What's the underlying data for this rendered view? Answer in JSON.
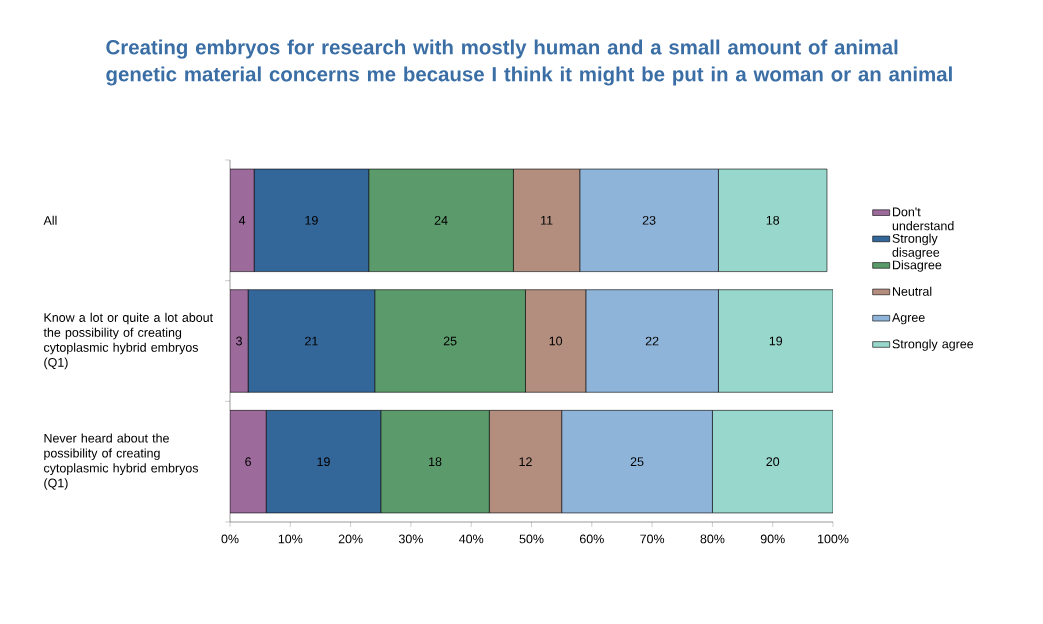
{
  "chart_data": {
    "type": "bar",
    "orientation": "horizontal",
    "stacked": true,
    "title": "Creating embryos for research with mostly human and a small amount of animal genetic material concerns me because I think it might be put in a woman or an animal",
    "categories": [
      "All",
      "Know a lot or quite a lot about the possibility of creating cytoplasmic hybrid embryos (Q1)",
      "Never heard about the possibility of creating cytoplasmic hybrid embryos (Q1)"
    ],
    "series": [
      {
        "name": "Don't understand",
        "color": "#9c6b9c",
        "values": [
          4,
          3,
          6
        ]
      },
      {
        "name": "Strongly disagree",
        "color": "#336699",
        "values": [
          19,
          21,
          19
        ]
      },
      {
        "name": "Disagree",
        "color": "#5b9a6b",
        "values": [
          24,
          25,
          18
        ]
      },
      {
        "name": "Neutral",
        "color": "#b38e7e",
        "values": [
          11,
          10,
          12
        ]
      },
      {
        "name": "Agree",
        "color": "#8fb4da",
        "values": [
          23,
          22,
          25
        ]
      },
      {
        "name": "Strongly agree",
        "color": "#98d7cb",
        "values": [
          18,
          19,
          20
        ]
      }
    ],
    "xlim": [
      0,
      100
    ],
    "xticks": [
      {
        "value": 0,
        "label": "0%"
      },
      {
        "value": 10,
        "label": "10%"
      },
      {
        "value": 20,
        "label": "20%"
      },
      {
        "value": 30,
        "label": "30%"
      },
      {
        "value": 40,
        "label": "40%"
      },
      {
        "value": 50,
        "label": "50%"
      },
      {
        "value": 60,
        "label": "60%"
      },
      {
        "value": 70,
        "label": "70%"
      },
      {
        "value": 80,
        "label": "80%"
      },
      {
        "value": 90,
        "label": "90%"
      },
      {
        "value": 100,
        "label": "100%"
      }
    ],
    "data_labels": true,
    "legend": "right",
    "grid": false
  }
}
